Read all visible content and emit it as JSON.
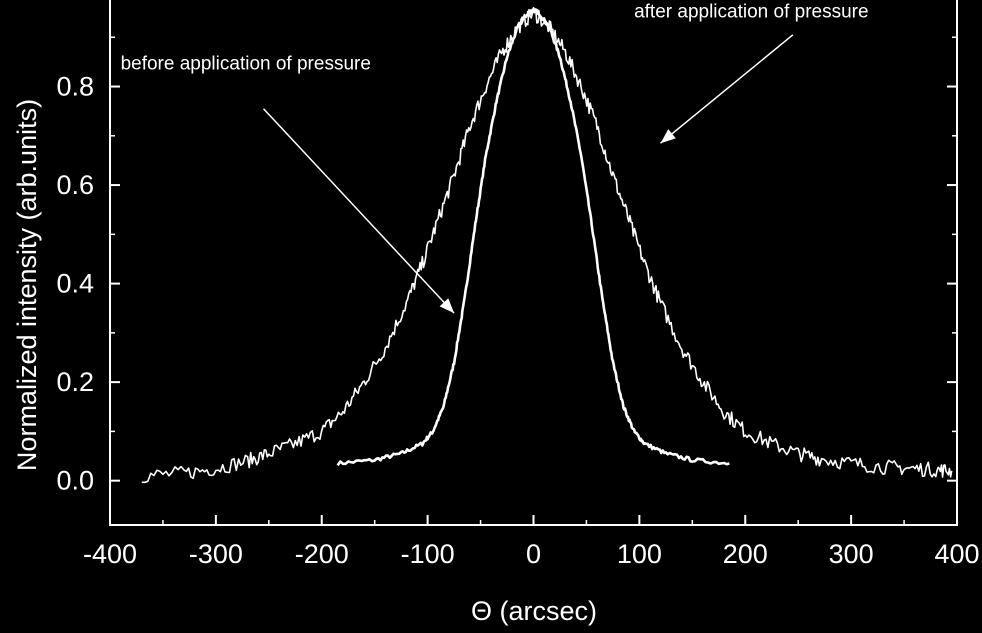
{
  "chart_data": {
    "type": "line",
    "title": "",
    "xlabel": "Θ (arcsec)",
    "ylabel": "Normalized intensity (arb.units)",
    "xlim": [
      -400,
      400
    ],
    "ylim": [
      -0.09,
      1.0
    ],
    "x_ticks": [
      -400,
      -300,
      -200,
      -100,
      0,
      100,
      200,
      300,
      400
    ],
    "x_tick_labels": [
      "-400",
      "-300",
      "-200",
      "-100",
      "0",
      "100",
      "200",
      "300",
      "400"
    ],
    "y_ticks": [
      0.0,
      0.2,
      0.4,
      0.6,
      0.8
    ],
    "y_tick_labels": [
      "0.0",
      "0.2",
      "0.4",
      "0.6",
      "0.8"
    ],
    "grid": false,
    "legend": "none",
    "colors": {
      "background": "#000000",
      "foreground": "#ffffff"
    },
    "series": [
      {
        "x": [
          -185,
          -150,
          -125,
          -105,
          -95,
          -85,
          -75,
          -65,
          -55,
          -45,
          -35,
          -25,
          -15,
          -5,
          0,
          5,
          15,
          25,
          35,
          45,
          55,
          65,
          75,
          85,
          95,
          105,
          125,
          150,
          185
        ],
        "y": [
          0.035,
          0.042,
          0.055,
          0.075,
          0.1,
          0.15,
          0.24,
          0.37,
          0.52,
          0.66,
          0.77,
          0.86,
          0.92,
          0.95,
          0.955,
          0.95,
          0.92,
          0.86,
          0.77,
          0.66,
          0.52,
          0.37,
          0.24,
          0.15,
          0.1,
          0.075,
          0.055,
          0.042,
          0.035
        ],
        "noise": 0.004
      },
      {
        "x": [
          -370,
          -330,
          -300,
          -270,
          -250,
          -225,
          -200,
          -180,
          -160,
          -140,
          -120,
          -105,
          -90,
          -75,
          -60,
          -45,
          -30,
          -15,
          0,
          15,
          30,
          45,
          60,
          75,
          90,
          105,
          120,
          140,
          160,
          180,
          200,
          225,
          250,
          270,
          300,
          330,
          355,
          380,
          395
        ],
        "y": [
          0.01,
          0.015,
          0.025,
          0.04,
          0.055,
          0.075,
          0.1,
          0.14,
          0.2,
          0.27,
          0.36,
          0.44,
          0.53,
          0.62,
          0.72,
          0.8,
          0.87,
          0.92,
          0.95,
          0.92,
          0.87,
          0.8,
          0.72,
          0.62,
          0.53,
          0.44,
          0.36,
          0.27,
          0.2,
          0.14,
          0.1,
          0.075,
          0.055,
          0.045,
          0.035,
          0.028,
          0.025,
          0.022,
          0.02
        ],
        "noise": 0.015
      }
    ],
    "annotations": [
      {
        "text": "before application of pressure",
        "x": -390,
        "y": 0.835,
        "arrow_from": [
          -255,
          0.755
        ],
        "arrow_to": [
          -75,
          0.34
        ]
      },
      {
        "text": "after application of pressure",
        "x": 95,
        "y": 0.94,
        "arrow_from": [
          245,
          0.905
        ],
        "arrow_to": [
          120,
          0.685
        ]
      }
    ]
  }
}
